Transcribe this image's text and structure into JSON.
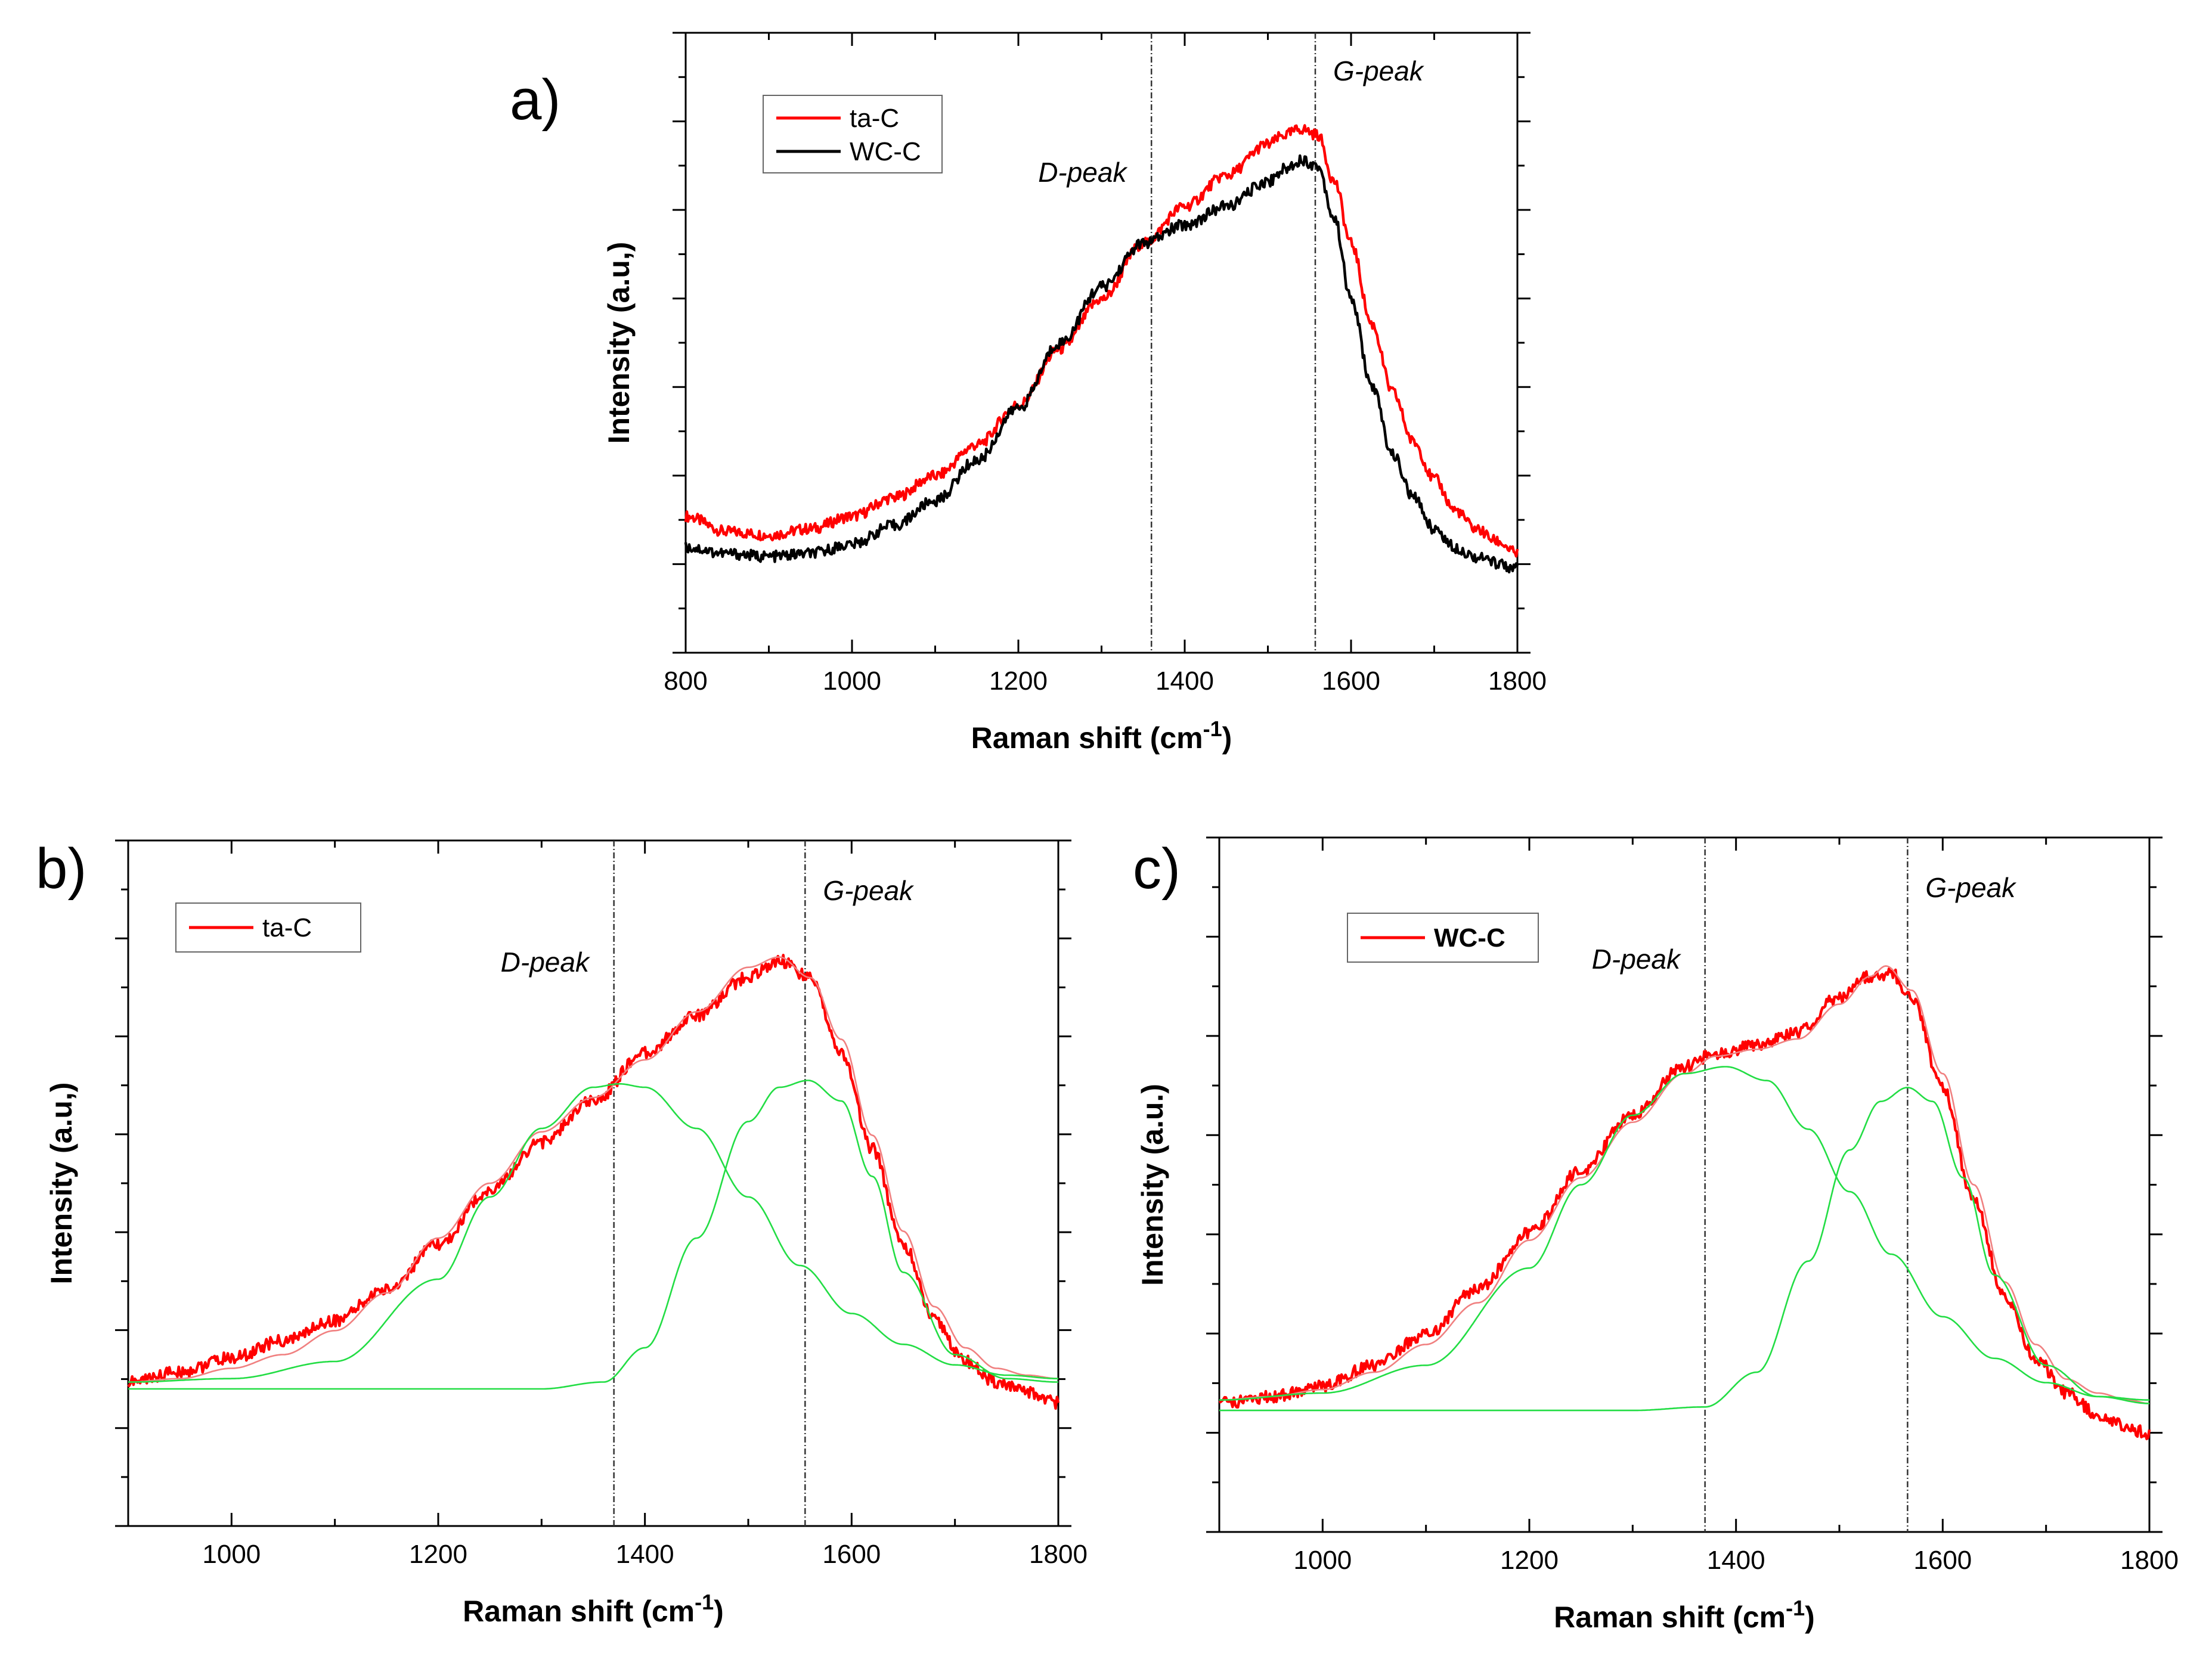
{
  "chart_data": [
    {
      "panel": "a)",
      "type": "line",
      "xlabel": "Raman shift (cm",
      "xlabel_sup": "-1",
      "xlabel_close": ")",
      "ylabel": "Intensity (a.u,)",
      "xlim": [
        800,
        1800
      ],
      "ylim": [
        0,
        1
      ],
      "xticks": [
        "800",
        "1000",
        "1200",
        "1400",
        "1600",
        "1800"
      ],
      "legend_placement": "top-left",
      "vlines": [
        {
          "x": 1360,
          "label": "D-peak"
        },
        {
          "x": 1557,
          "label": "G-peak"
        }
      ],
      "series": [
        {
          "name": "ta-C",
          "color": "#ff0000",
          "x": [
            800,
            850,
            900,
            950,
            1000,
            1050,
            1100,
            1150,
            1200,
            1250,
            1300,
            1350,
            1400,
            1450,
            1500,
            1520,
            1540,
            1560,
            1580,
            1600,
            1625,
            1650,
            1675,
            1700,
            1725,
            1750,
            1775,
            1800
          ],
          "y": [
            0.22,
            0.195,
            0.19,
            0.2,
            0.22,
            0.25,
            0.285,
            0.335,
            0.4,
            0.49,
            0.57,
            0.66,
            0.72,
            0.77,
            0.82,
            0.835,
            0.845,
            0.835,
            0.76,
            0.66,
            0.53,
            0.42,
            0.34,
            0.28,
            0.23,
            0.2,
            0.18,
            0.16
          ]
        },
        {
          "name": "WC-C",
          "color": "#000000",
          "x": [
            800,
            850,
            900,
            950,
            1000,
            1050,
            1100,
            1150,
            1200,
            1250,
            1300,
            1350,
            1400,
            1450,
            1500,
            1520,
            1540,
            1560,
            1580,
            1600,
            1625,
            1650,
            1675,
            1700,
            1725,
            1750,
            1775,
            1800
          ],
          "y": [
            0.17,
            0.16,
            0.155,
            0.16,
            0.175,
            0.205,
            0.245,
            0.31,
            0.395,
            0.5,
            0.59,
            0.66,
            0.69,
            0.72,
            0.76,
            0.78,
            0.795,
            0.785,
            0.7,
            0.57,
            0.43,
            0.32,
            0.25,
            0.2,
            0.17,
            0.155,
            0.145,
            0.135
          ]
        }
      ]
    },
    {
      "panel": "b)",
      "type": "line",
      "xlabel": "Raman shift (cm",
      "xlabel_sup": "-1",
      "xlabel_close": ")",
      "ylabel": "Intensity (a.u,)",
      "xlim": [
        900,
        1800
      ],
      "ylim": [
        0,
        1
      ],
      "xticks": [
        "1000",
        "1200",
        "1400",
        "1600",
        "1800"
      ],
      "legend_placement": "top-left",
      "vlines": [
        {
          "x": 1370,
          "label": "D-peak"
        },
        {
          "x": 1555,
          "label": "G-peak"
        }
      ],
      "series": [
        {
          "name": "ta-C",
          "color": "#ff0000",
          "x": [
            900,
            950,
            1000,
            1050,
            1100,
            1150,
            1200,
            1250,
            1300,
            1350,
            1400,
            1450,
            1500,
            1530,
            1560,
            1590,
            1620,
            1650,
            1680,
            1710,
            1740,
            1770,
            1800
          ],
          "y": [
            0.21,
            0.225,
            0.245,
            0.27,
            0.3,
            0.345,
            0.41,
            0.49,
            0.56,
            0.62,
            0.69,
            0.745,
            0.8,
            0.825,
            0.8,
            0.69,
            0.55,
            0.41,
            0.3,
            0.24,
            0.21,
            0.195,
            0.18
          ]
        },
        {
          "name": "",
          "color": "#f08080",
          "role": "cumulative-fit",
          "x": [
            900,
            950,
            1000,
            1050,
            1100,
            1150,
            1200,
            1250,
            1300,
            1350,
            1400,
            1450,
            1500,
            1530,
            1560,
            1590,
            1620,
            1650,
            1680,
            1710,
            1740,
            1770,
            1800
          ],
          "y": [
            0.21,
            0.215,
            0.23,
            0.25,
            0.285,
            0.34,
            0.42,
            0.5,
            0.575,
            0.625,
            0.68,
            0.75,
            0.815,
            0.83,
            0.8,
            0.71,
            0.57,
            0.43,
            0.32,
            0.26,
            0.23,
            0.22,
            0.215
          ]
        },
        {
          "name": "",
          "color": "#22dd44",
          "role": "component",
          "x": [
            900,
            1000,
            1100,
            1200,
            1250,
            1300,
            1350,
            1375,
            1400,
            1450,
            1500,
            1550,
            1600,
            1650,
            1700,
            1750,
            1800
          ],
          "y": [
            0.21,
            0.215,
            0.24,
            0.36,
            0.48,
            0.58,
            0.64,
            0.645,
            0.64,
            0.58,
            0.48,
            0.38,
            0.31,
            0.265,
            0.235,
            0.22,
            0.215
          ]
        },
        {
          "name": "",
          "color": "#22dd44",
          "role": "component",
          "x": [
            900,
            1100,
            1300,
            1360,
            1400,
            1450,
            1500,
            1530,
            1558,
            1590,
            1620,
            1650,
            1700,
            1750,
            1800
          ],
          "y": [
            0.2,
            0.2,
            0.2,
            0.21,
            0.26,
            0.42,
            0.59,
            0.64,
            0.65,
            0.62,
            0.51,
            0.37,
            0.25,
            0.215,
            0.21
          ]
        }
      ]
    },
    {
      "panel": "c)",
      "type": "line",
      "xlabel": "Raman shift (cm",
      "xlabel_sup": "-1",
      "xlabel_close": ")",
      "ylabel": "Intensity (a.u.)",
      "xlim": [
        900,
        1800
      ],
      "ylim": [
        0,
        1
      ],
      "xticks": [
        "1000",
        "1200",
        "1400",
        "1600",
        "1800"
      ],
      "legend_placement": "top-left",
      "vlines": [
        {
          "x": 1370,
          "label": "D-peak"
        },
        {
          "x": 1566,
          "label": "G-peak"
        }
      ],
      "series": [
        {
          "name": "WC-C",
          "color": "#ff0000",
          "x": [
            900,
            950,
            1000,
            1050,
            1100,
            1150,
            1200,
            1250,
            1300,
            1350,
            1380,
            1420,
            1460,
            1500,
            1530,
            1550,
            1570,
            1600,
            1630,
            1660,
            1690,
            1720,
            1750,
            1780,
            1800
          ],
          "y": [
            0.185,
            0.195,
            0.21,
            0.24,
            0.285,
            0.35,
            0.43,
            0.52,
            0.6,
            0.67,
            0.69,
            0.7,
            0.72,
            0.77,
            0.8,
            0.805,
            0.77,
            0.64,
            0.48,
            0.34,
            0.25,
            0.2,
            0.17,
            0.15,
            0.14
          ]
        },
        {
          "name": "",
          "color": "#f08080",
          "role": "cumulative-fit",
          "x": [
            900,
            950,
            1000,
            1050,
            1100,
            1150,
            1200,
            1250,
            1300,
            1350,
            1380,
            1420,
            1460,
            1500,
            1530,
            1545,
            1570,
            1600,
            1630,
            1660,
            1690,
            1720,
            1750,
            1780,
            1800
          ],
          "y": [
            0.19,
            0.195,
            0.205,
            0.23,
            0.27,
            0.33,
            0.42,
            0.51,
            0.59,
            0.66,
            0.685,
            0.695,
            0.71,
            0.76,
            0.8,
            0.815,
            0.78,
            0.66,
            0.5,
            0.36,
            0.27,
            0.22,
            0.2,
            0.19,
            0.185
          ]
        },
        {
          "name": "",
          "color": "#22dd44",
          "role": "component",
          "x": [
            900,
            1000,
            1100,
            1200,
            1250,
            1300,
            1350,
            1390,
            1430,
            1470,
            1510,
            1550,
            1600,
            1650,
            1700,
            1750,
            1800
          ],
          "y": [
            0.19,
            0.2,
            0.24,
            0.38,
            0.5,
            0.6,
            0.66,
            0.67,
            0.65,
            0.58,
            0.49,
            0.4,
            0.31,
            0.25,
            0.215,
            0.195,
            0.19
          ]
        },
        {
          "name": "",
          "color": "#22dd44",
          "role": "component",
          "x": [
            900,
            1100,
            1300,
            1370,
            1420,
            1470,
            1510,
            1540,
            1566,
            1590,
            1620,
            1650,
            1700,
            1750,
            1800
          ],
          "y": [
            0.175,
            0.175,
            0.175,
            0.18,
            0.23,
            0.39,
            0.55,
            0.62,
            0.64,
            0.62,
            0.51,
            0.37,
            0.24,
            0.195,
            0.185
          ]
        }
      ]
    }
  ]
}
